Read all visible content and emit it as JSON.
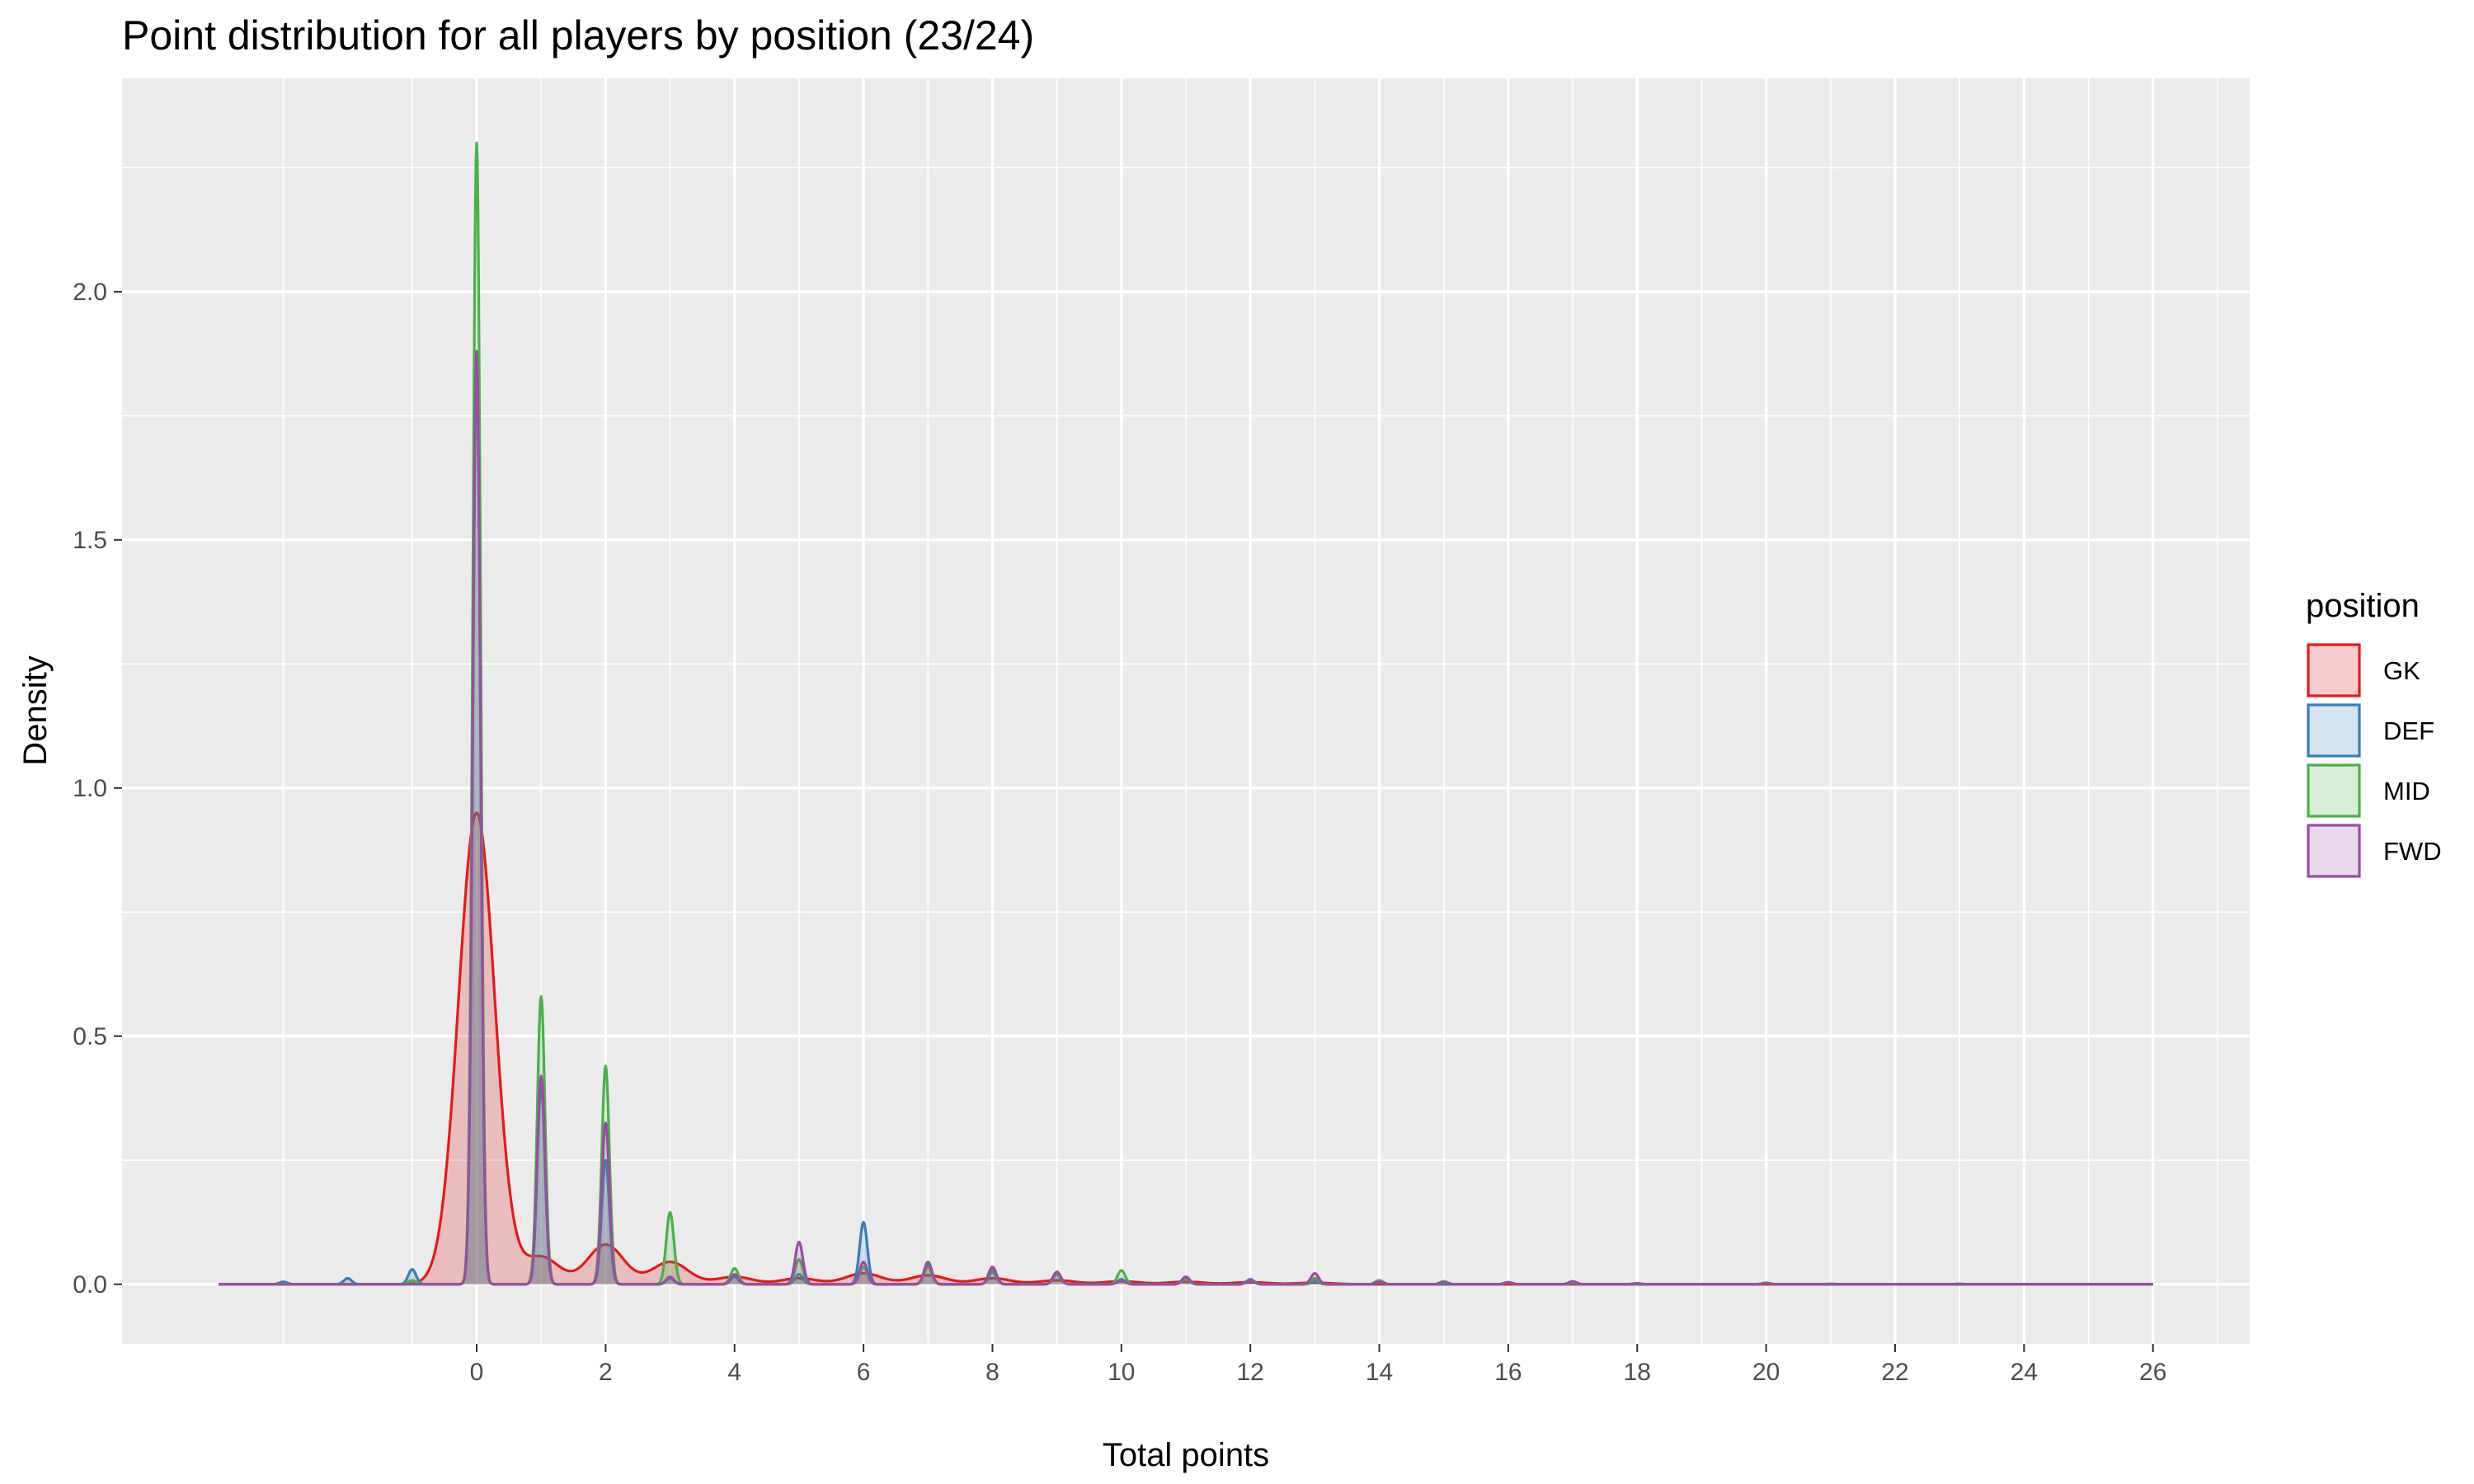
{
  "chart_data": {
    "type": "area",
    "title": "Point distribution for all players by position (23/24)",
    "xlabel": "Total points",
    "ylabel": "Density",
    "xlim": [
      -5.5,
      27.5
    ],
    "ylim": [
      -0.12,
      2.43
    ],
    "x_ticks": [
      0,
      2,
      4,
      6,
      8,
      10,
      12,
      14,
      16,
      18,
      20,
      22,
      24,
      26
    ],
    "y_ticks": [
      0.0,
      0.5,
      1.0,
      1.5,
      2.0
    ],
    "y_tick_labels": [
      "0.0",
      "0.5",
      "1.0",
      "1.5",
      "2.0"
    ],
    "x_range": [
      -4,
      26
    ],
    "grid": true,
    "legend": {
      "title": "position",
      "placement": "right"
    },
    "series": [
      {
        "name": "GK",
        "color": "#E41A1C",
        "fill": "#E41A1C",
        "bandwidth": 0.28,
        "peaks": [
          [
            0,
            0.95
          ],
          [
            1,
            0.055
          ],
          [
            2,
            0.08
          ],
          [
            3,
            0.045
          ],
          [
            4,
            0.015
          ],
          [
            5,
            0.012
          ],
          [
            6,
            0.022
          ],
          [
            7,
            0.018
          ],
          [
            8,
            0.012
          ],
          [
            9,
            0.008
          ],
          [
            10,
            0.006
          ],
          [
            11,
            0.005
          ],
          [
            12,
            0.004
          ],
          [
            13,
            0.003
          ]
        ]
      },
      {
        "name": "DEF",
        "color": "#377EB8",
        "fill": "#377EB8",
        "bandwidth": 0.06,
        "peaks": [
          [
            -3,
            0.005
          ],
          [
            -2,
            0.012
          ],
          [
            -1,
            0.03
          ],
          [
            0,
            1.85
          ],
          [
            1,
            0.4
          ],
          [
            2,
            0.25
          ],
          [
            3,
            0.012
          ],
          [
            4,
            0.015
          ],
          [
            5,
            0.02
          ],
          [
            6,
            0.125
          ],
          [
            7,
            0.04
          ],
          [
            8,
            0.025
          ],
          [
            9,
            0.02
          ],
          [
            10,
            0.01
          ],
          [
            11,
            0.012
          ],
          [
            12,
            0.01
          ],
          [
            13,
            0.006
          ],
          [
            14,
            0.003
          ],
          [
            16,
            0.004
          ],
          [
            17,
            0.002
          ],
          [
            20,
            0.002
          ]
        ]
      },
      {
        "name": "MID",
        "color": "#4DAF4A",
        "fill": "#4DAF4A",
        "bandwidth": 0.06,
        "peaks": [
          [
            -1,
            0.008
          ],
          [
            0,
            2.3
          ],
          [
            1,
            0.58
          ],
          [
            2,
            0.44
          ],
          [
            3,
            0.145
          ],
          [
            4,
            0.032
          ],
          [
            5,
            0.05
          ],
          [
            6,
            0.035
          ],
          [
            7,
            0.035
          ],
          [
            8,
            0.03
          ],
          [
            9,
            0.02
          ],
          [
            10,
            0.028
          ],
          [
            11,
            0.012
          ],
          [
            12,
            0.008
          ],
          [
            13,
            0.012
          ],
          [
            14,
            0.008
          ],
          [
            15,
            0.006
          ],
          [
            16,
            0.004
          ],
          [
            17,
            0.003
          ],
          [
            18,
            0.002
          ],
          [
            20,
            0.003
          ],
          [
            21,
            0.001
          ],
          [
            23,
            0.001
          ]
        ]
      },
      {
        "name": "FWD",
        "color": "#984EA3",
        "fill": "#984EA3",
        "bandwidth": 0.06,
        "peaks": [
          [
            0,
            1.88
          ],
          [
            1,
            0.42
          ],
          [
            2,
            0.325
          ],
          [
            3,
            0.015
          ],
          [
            4,
            0.02
          ],
          [
            5,
            0.085
          ],
          [
            6,
            0.045
          ],
          [
            7,
            0.045
          ],
          [
            8,
            0.035
          ],
          [
            9,
            0.025
          ],
          [
            10,
            0.008
          ],
          [
            11,
            0.015
          ],
          [
            12,
            0.008
          ],
          [
            13,
            0.022
          ],
          [
            14,
            0.005
          ],
          [
            15,
            0.004
          ],
          [
            16,
            0.004
          ],
          [
            17,
            0.006
          ],
          [
            18,
            0.002
          ],
          [
            20,
            0.002
          ]
        ]
      }
    ]
  }
}
